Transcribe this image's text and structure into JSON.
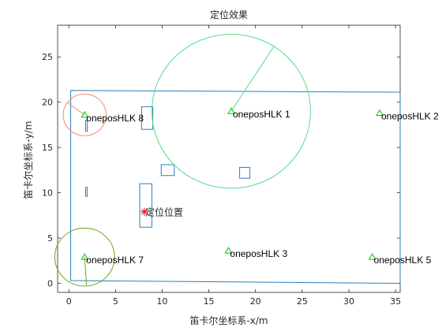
{
  "chart_data": {
    "type": "scatter",
    "title": "定位效果",
    "xlabel": "笛卡尔坐标系-x/m",
    "ylabel": "笛卡尔坐标系-y/m",
    "xlim": [
      -1.2,
      35.5
    ],
    "ylim": [
      -1,
      28.5
    ],
    "xticks": [
      0,
      5,
      10,
      15,
      20,
      25,
      30,
      35
    ],
    "yticks": [
      0,
      5,
      10,
      15,
      20,
      25
    ],
    "grid": false,
    "colors": {
      "room": "#2a7fbf",
      "anchor": "#00cc00",
      "estimate": "#ff0000",
      "circle_1": "#55dd88",
      "circle_7": "#66aa11",
      "circle_8": "#ff8866",
      "axes": "#262626"
    },
    "room_outline": [
      [
        0.2,
        21.3
      ],
      [
        35.5,
        21.1
      ],
      [
        35.5,
        0.0
      ],
      [
        0.2,
        0.3
      ],
      [
        0.2,
        21.3
      ]
    ],
    "obstacles": [
      {
        "x": 7.8,
        "y": 17.0,
        "w": 1.2,
        "h": 2.5
      },
      {
        "x": 7.6,
        "y": 6.2,
        "w": 1.3,
        "h": 4.8
      },
      {
        "x": 9.9,
        "y": 11.9,
        "w": 1.4,
        "h": 1.2
      },
      {
        "x": 18.3,
        "y": 11.6,
        "w": 1.1,
        "h": 1.2
      },
      {
        "x": 1.8,
        "y": 16.8,
        "w": 0.18,
        "h": 1.2
      },
      {
        "x": 1.8,
        "y": 9.6,
        "w": 0.18,
        "h": 1.0
      }
    ],
    "anchors": [
      {
        "name": "oneposHLK 1",
        "x": 17.4,
        "y": 19.0
      },
      {
        "name": "oneposHLK 2",
        "x": 33.3,
        "y": 18.8
      },
      {
        "name": "oneposHLK 3",
        "x": 17.1,
        "y": 3.6
      },
      {
        "name": "oneposHLK 5",
        "x": 32.5,
        "y": 2.9
      },
      {
        "name": "oneposHLK 7",
        "x": 1.7,
        "y": 2.9
      },
      {
        "name": "oneposHLK 8",
        "x": 1.7,
        "y": 18.6
      }
    ],
    "range_circles": [
      {
        "anchor": "oneposHLK 1",
        "cx": 17.4,
        "cy": 19.0,
        "r": 8.5,
        "color_key": "circle_1",
        "to": [
          22.0,
          26.2
        ]
      },
      {
        "anchor": "oneposHLK 7",
        "cx": 1.7,
        "cy": 2.9,
        "r": 3.2,
        "color_key": "circle_7",
        "to": [
          1.9,
          -0.2
        ]
      },
      {
        "anchor": "oneposHLK 8",
        "cx": 1.7,
        "cy": 18.6,
        "r": 2.3,
        "color_key": "circle_8",
        "to": [
          -0.1,
          19.9
        ]
      }
    ],
    "estimate": {
      "label": "定位位置",
      "x": 8.1,
      "y": 7.9
    }
  }
}
